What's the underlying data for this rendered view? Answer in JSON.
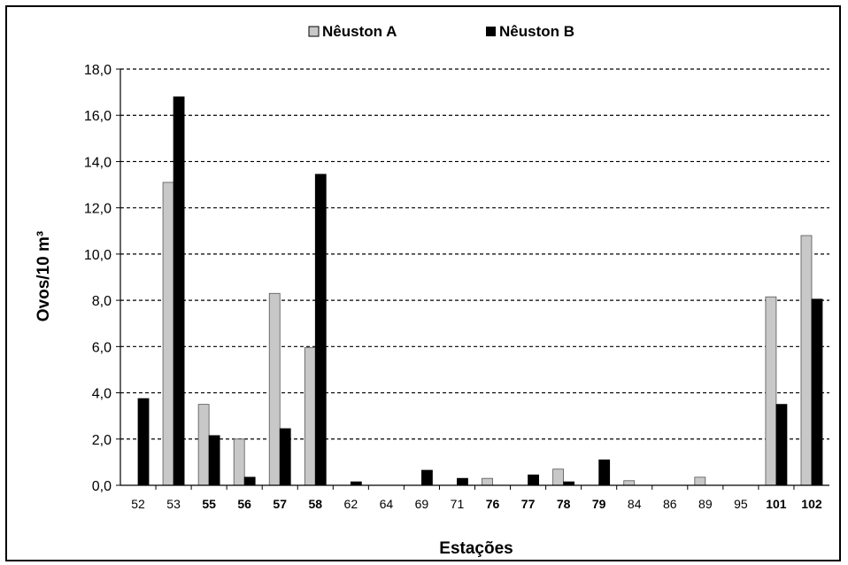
{
  "chart_data": {
    "type": "bar",
    "title": "",
    "xlabel": "Estações",
    "ylabel": "Ovos/10 m³",
    "ylim": [
      0,
      18
    ],
    "yticks": [
      0,
      2,
      4,
      6,
      8,
      10,
      12,
      14,
      16,
      18
    ],
    "ytick_labels": [
      "0,0",
      "2,0",
      "4,0",
      "6,0",
      "8,0",
      "10,0",
      "12,0",
      "14,0",
      "16,0",
      "18,0"
    ],
    "categories": [
      "52",
      "53",
      "55",
      "56",
      "57",
      "58",
      "62",
      "64",
      "69",
      "71",
      "76",
      "77",
      "78",
      "79",
      "84",
      "86",
      "89",
      "95",
      "101",
      "102"
    ],
    "bold_categories": [
      "55",
      "56",
      "57",
      "58",
      "76",
      "77",
      "78",
      "79",
      "101",
      "102"
    ],
    "series": [
      {
        "name": "Nêuston A",
        "color": "#c8c8c8",
        "values": [
          0,
          13.1,
          3.5,
          2.0,
          8.3,
          5.95,
          0,
          0,
          0,
          0,
          0.3,
          0,
          0.7,
          0,
          0.2,
          0,
          0.35,
          0,
          8.15,
          10.8
        ]
      },
      {
        "name": "Nêuston B",
        "color": "#000000",
        "values": [
          3.75,
          16.8,
          2.15,
          0.35,
          2.45,
          13.45,
          0.15,
          0,
          0.65,
          0.3,
          0,
          0.45,
          0.15,
          1.1,
          0,
          0,
          0,
          0,
          3.5,
          8.05
        ]
      }
    ],
    "grid": true,
    "grid_style": "dashed",
    "legend_position": "top-center"
  }
}
